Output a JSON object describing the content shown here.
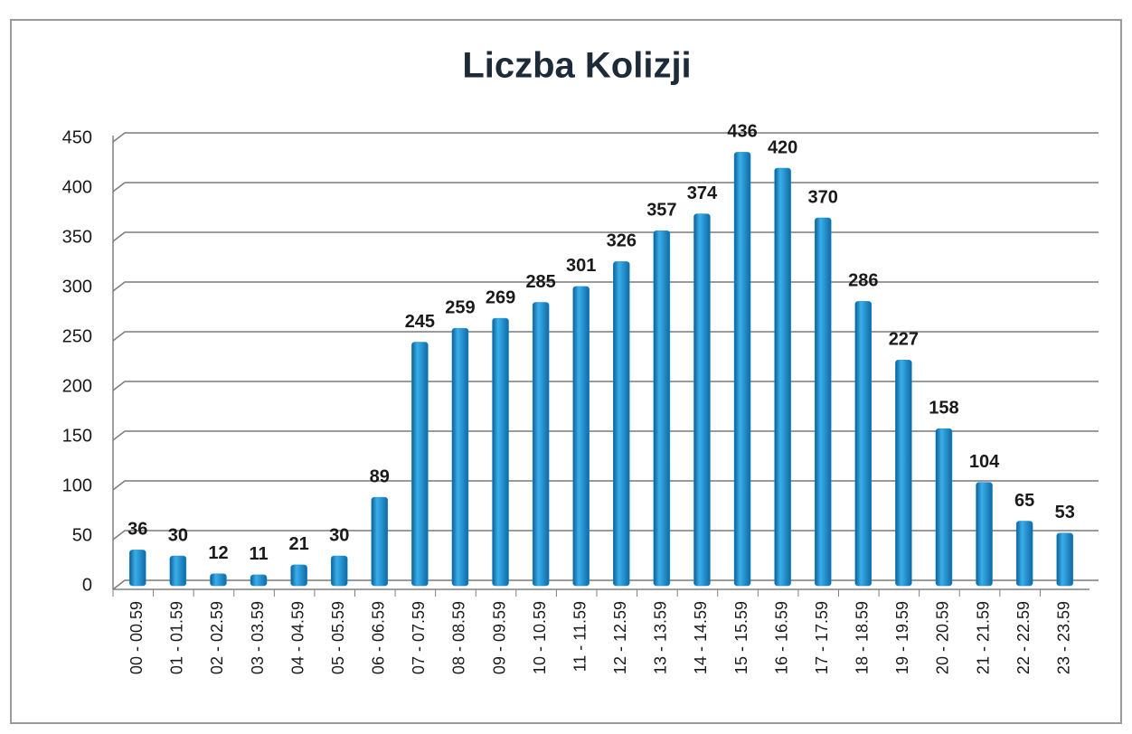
{
  "chart_data": {
    "type": "bar",
    "title": "Liczba Kolizji",
    "categories": [
      "00 - 00.59",
      "01 - 01.59",
      "02 - 02.59",
      "03 - 03.59",
      "04 - 04.59",
      "05 - 05.59",
      "06 - 06.59",
      "07 - 07.59",
      "08 - 08.59",
      "09 - 09.59",
      "10 - 10.59",
      "11 - 11.59",
      "12 - 12.59",
      "13 - 13.59",
      "14 - 14.59",
      "15 - 15.59",
      "16 - 16.59",
      "17 - 17.59",
      "18 - 18.59",
      "19 - 19.59",
      "20 - 20.59",
      "21 - 21.59",
      "22 - 22.59",
      "23 - 23.59"
    ],
    "values": [
      36,
      30,
      12,
      11,
      21,
      30,
      89,
      245,
      259,
      269,
      285,
      301,
      326,
      357,
      374,
      436,
      420,
      370,
      286,
      227,
      158,
      104,
      65,
      53
    ],
    "color": "#1b8fd2",
    "ylim": [
      0,
      450
    ],
    "yticks": [
      0,
      50,
      100,
      150,
      200,
      250,
      300,
      350,
      400,
      450
    ],
    "grid": true
  }
}
